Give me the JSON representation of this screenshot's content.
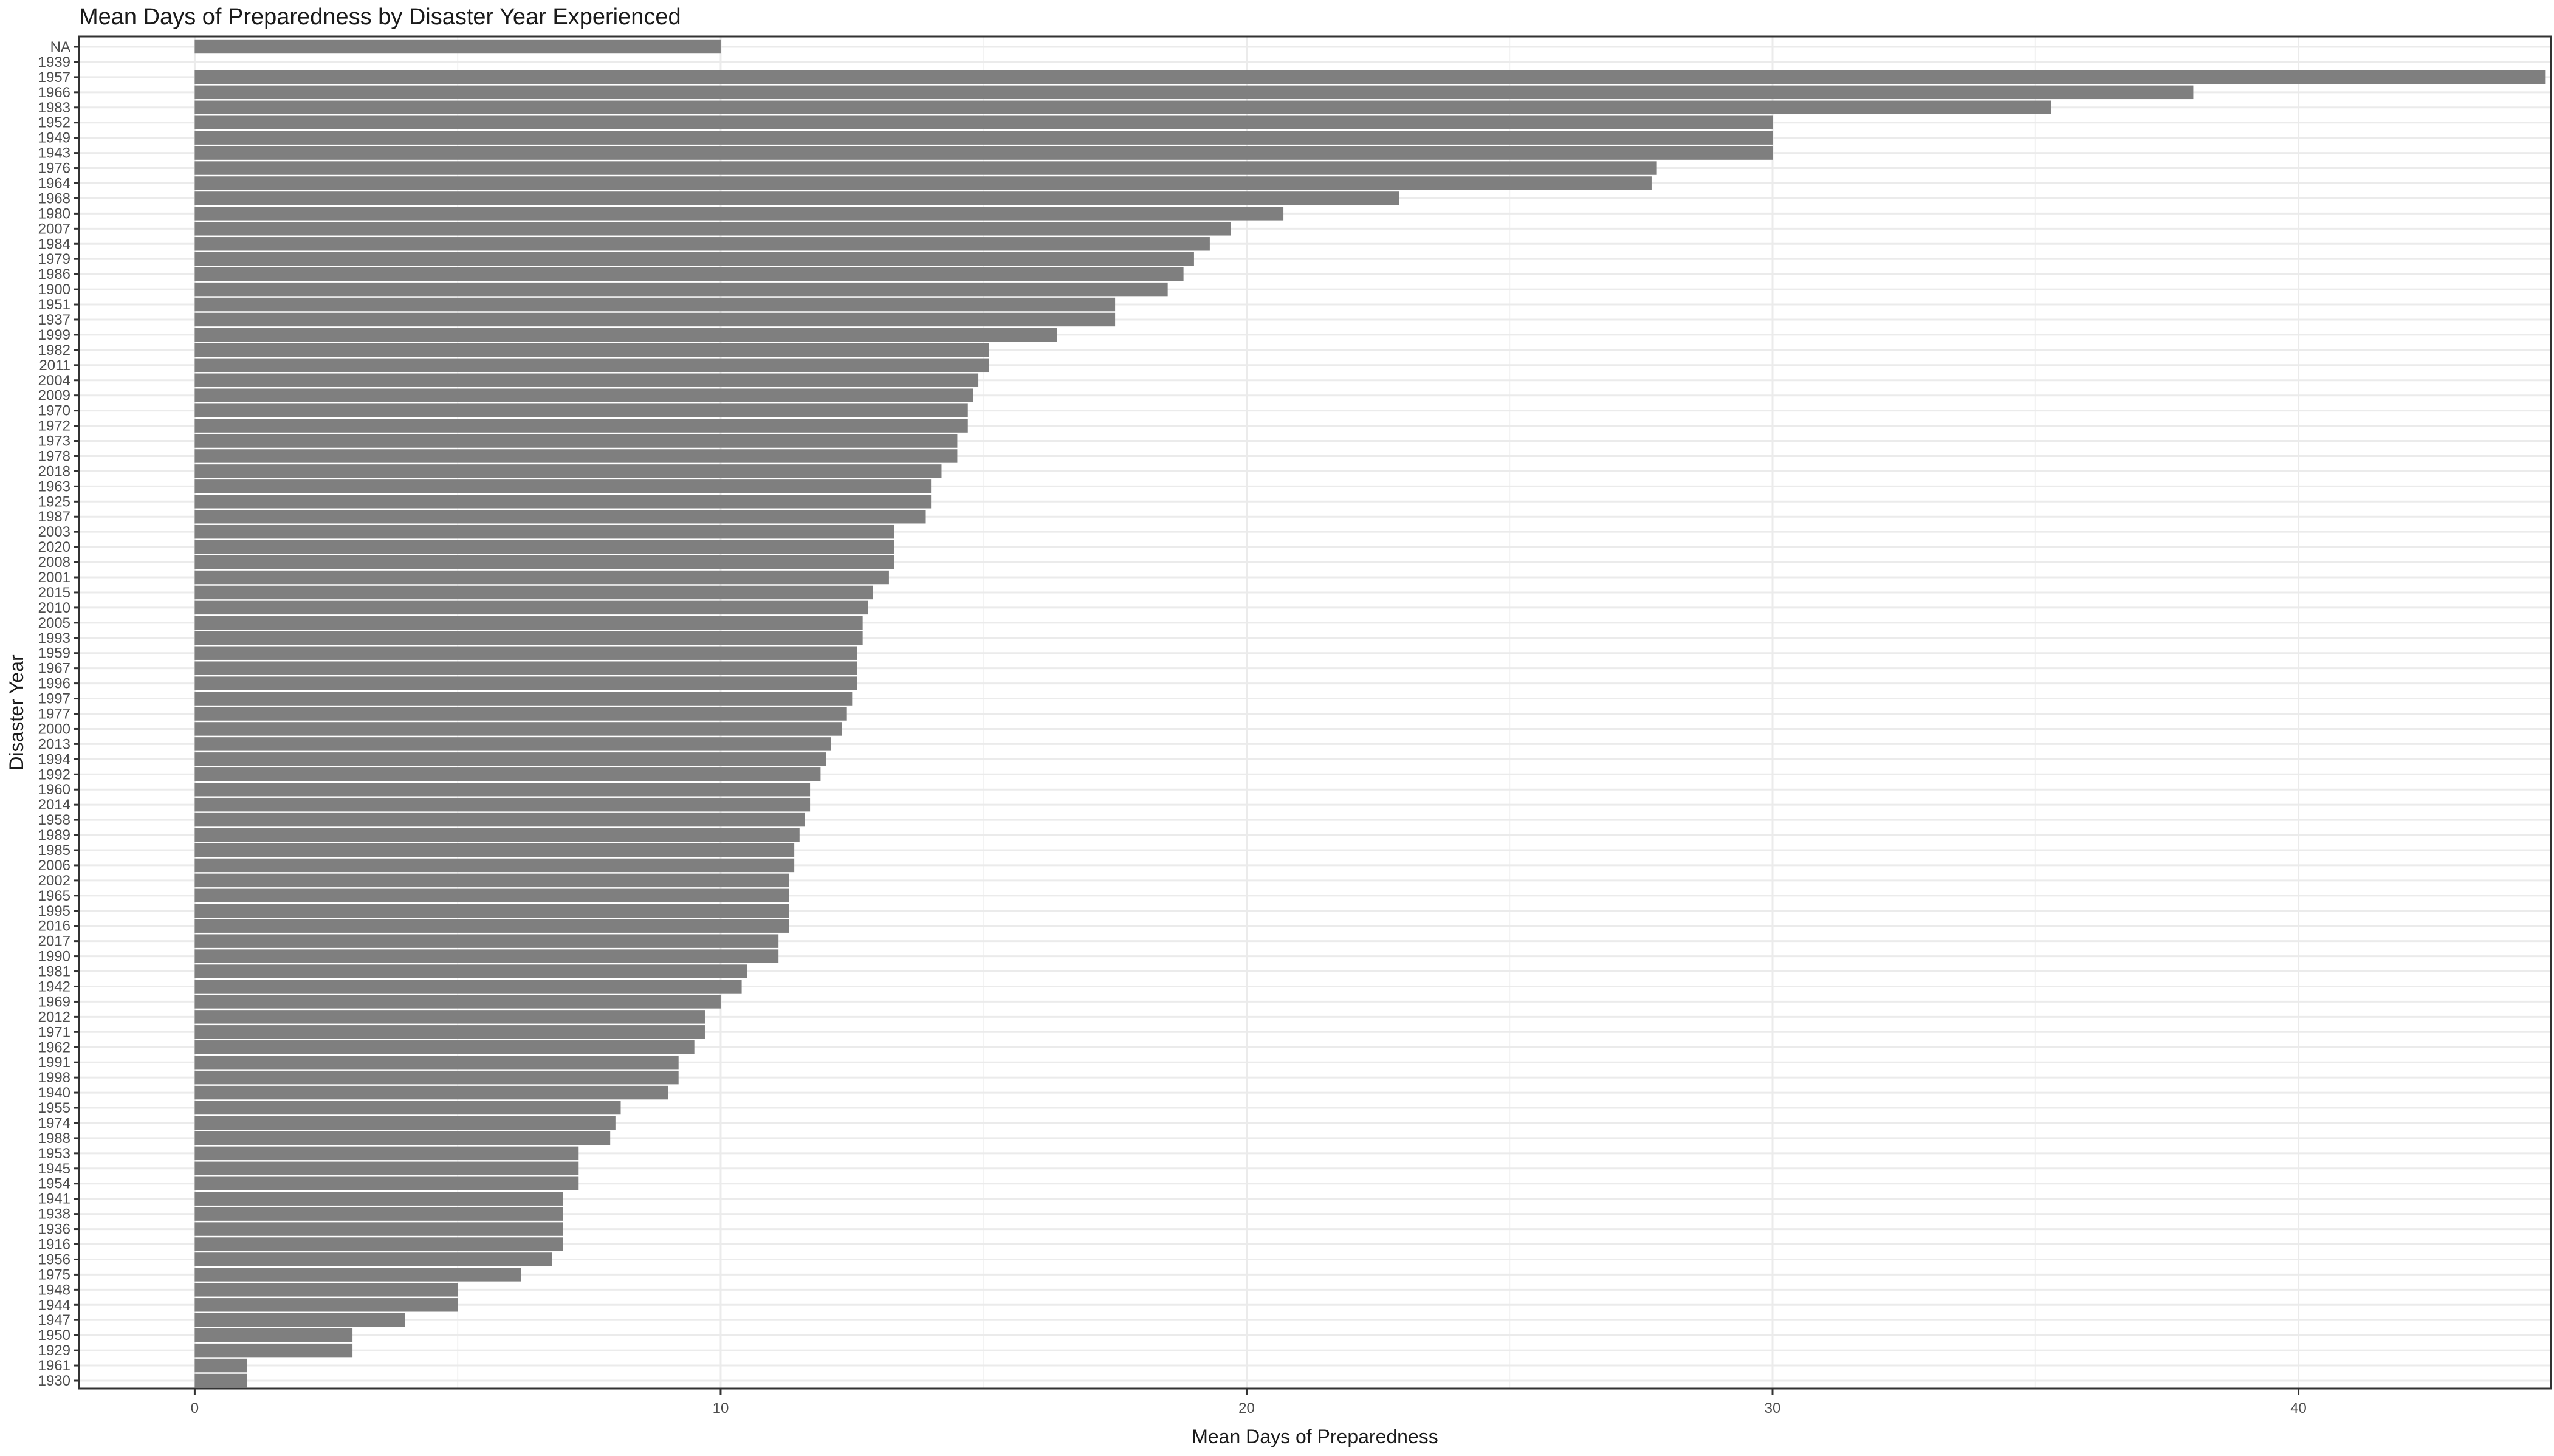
{
  "chart_data": {
    "type": "bar",
    "orientation": "horizontal",
    "title": "Mean Days of Preparedness by Disaster Year Experienced",
    "xlabel": "Mean Days of Preparedness",
    "ylabel": "Disaster Year",
    "xlim": [
      -2.2,
      44.8
    ],
    "xticks": [
      0,
      10,
      20,
      30,
      40
    ],
    "grid": true,
    "legend": "none",
    "bar_color": "#7f7f7f",
    "categories": [
      "NA",
      "1939",
      "1957",
      "1966",
      "1983",
      "1952",
      "1949",
      "1943",
      "1976",
      "1964",
      "1968",
      "1980",
      "2007",
      "1984",
      "1979",
      "1986",
      "1900",
      "1951",
      "1937",
      "1999",
      "1982",
      "2011",
      "2004",
      "2009",
      "1970",
      "1972",
      "1973",
      "1978",
      "2018",
      "1963",
      "1925",
      "1987",
      "2003",
      "2020",
      "2008",
      "2001",
      "2015",
      "2010",
      "2005",
      "1993",
      "1959",
      "1967",
      "1996",
      "1997",
      "1977",
      "2000",
      "2013",
      "1994",
      "1992",
      "1960",
      "2014",
      "1958",
      "1989",
      "1985",
      "2006",
      "2002",
      "1965",
      "1995",
      "2016",
      "2017",
      "1990",
      "1981",
      "1942",
      "1969",
      "2012",
      "1971",
      "1962",
      "1991",
      "1998",
      "1940",
      "1955",
      "1974",
      "1988",
      "1953",
      "1945",
      "1954",
      "1941",
      "1938",
      "1936",
      "1916",
      "1956",
      "1975",
      "1948",
      "1944",
      "1947",
      "1950",
      "1929",
      "1961",
      "1930"
    ],
    "values": [
      10.0,
      0,
      44.7,
      38.0,
      35.3,
      30.0,
      30.0,
      30.0,
      27.8,
      27.7,
      22.9,
      20.7,
      19.7,
      19.3,
      19.0,
      18.8,
      18.5,
      17.5,
      17.5,
      16.4,
      15.1,
      15.1,
      14.9,
      14.8,
      14.7,
      14.7,
      14.5,
      14.5,
      14.2,
      14.0,
      14.0,
      13.9,
      13.3,
      13.3,
      13.3,
      13.2,
      12.9,
      12.8,
      12.7,
      12.7,
      12.6,
      12.6,
      12.6,
      12.5,
      12.4,
      12.3,
      12.1,
      12.0,
      11.9,
      11.7,
      11.7,
      11.6,
      11.5,
      11.4,
      11.4,
      11.3,
      11.3,
      11.3,
      11.3,
      11.1,
      11.1,
      10.5,
      10.4,
      10.0,
      9.7,
      9.7,
      9.5,
      9.2,
      9.2,
      9.0,
      8.1,
      8.0,
      7.9,
      7.3,
      7.3,
      7.3,
      7.0,
      7.0,
      7.0,
      7.0,
      6.8,
      6.2,
      5.0,
      5.0,
      4.0,
      3.0,
      3.0,
      1.0,
      1.0
    ]
  }
}
